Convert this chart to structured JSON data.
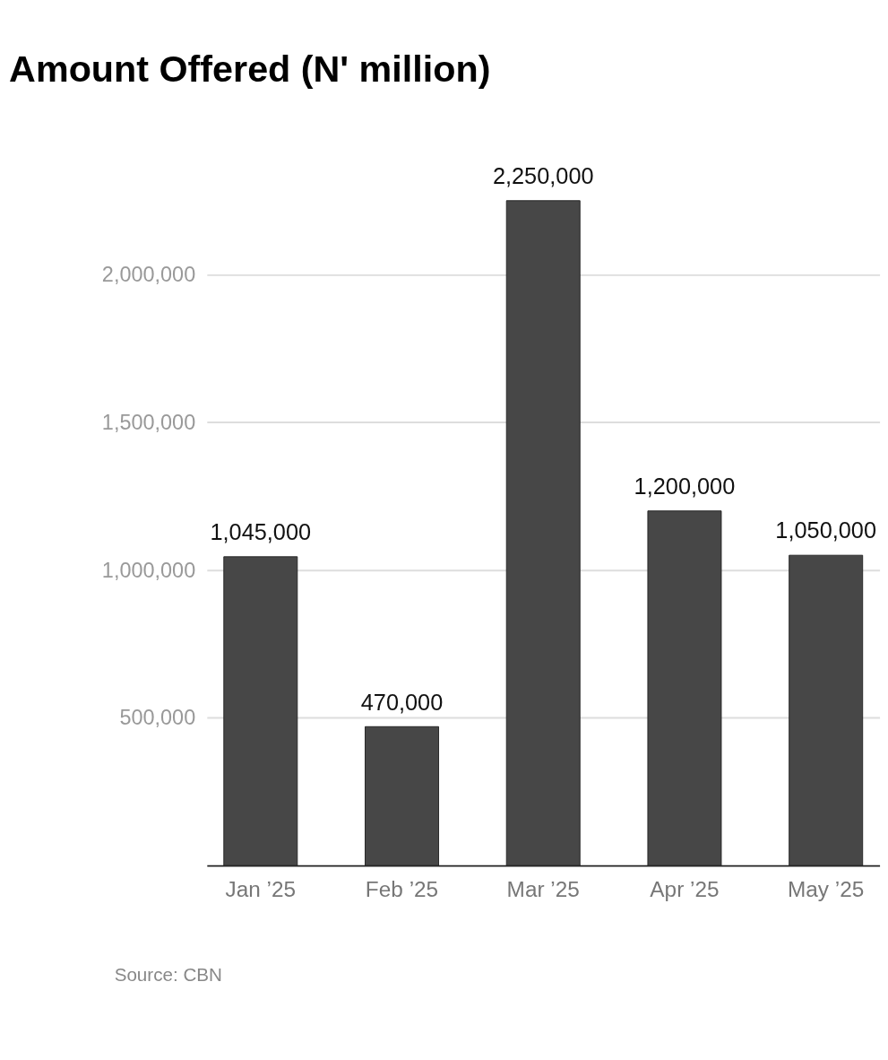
{
  "chart_data": {
    "type": "bar",
    "title": "Amount Offered (N' million)",
    "categories": [
      "Jan ’25",
      "Feb ’25",
      "Mar ’25",
      "Apr ’25",
      "May ’25"
    ],
    "values": [
      1045000,
      470000,
      2250000,
      1200000,
      1050000
    ],
    "color": "#474747",
    "ylim": [
      0,
      2250000
    ],
    "yticks": [
      {
        "value": 500000,
        "label": "500,000"
      },
      {
        "value": 1000000,
        "label": "1,000,000"
      },
      {
        "value": 1500000,
        "label": "1,500,000"
      },
      {
        "value": 2000000,
        "label": "2,000,000"
      }
    ],
    "grid": "y",
    "value_labels": [
      "1,045,000",
      "470,000",
      "2,250,000",
      "1,200,000",
      "1,050,000"
    ],
    "annotations": [
      "Source: CBN"
    ]
  }
}
